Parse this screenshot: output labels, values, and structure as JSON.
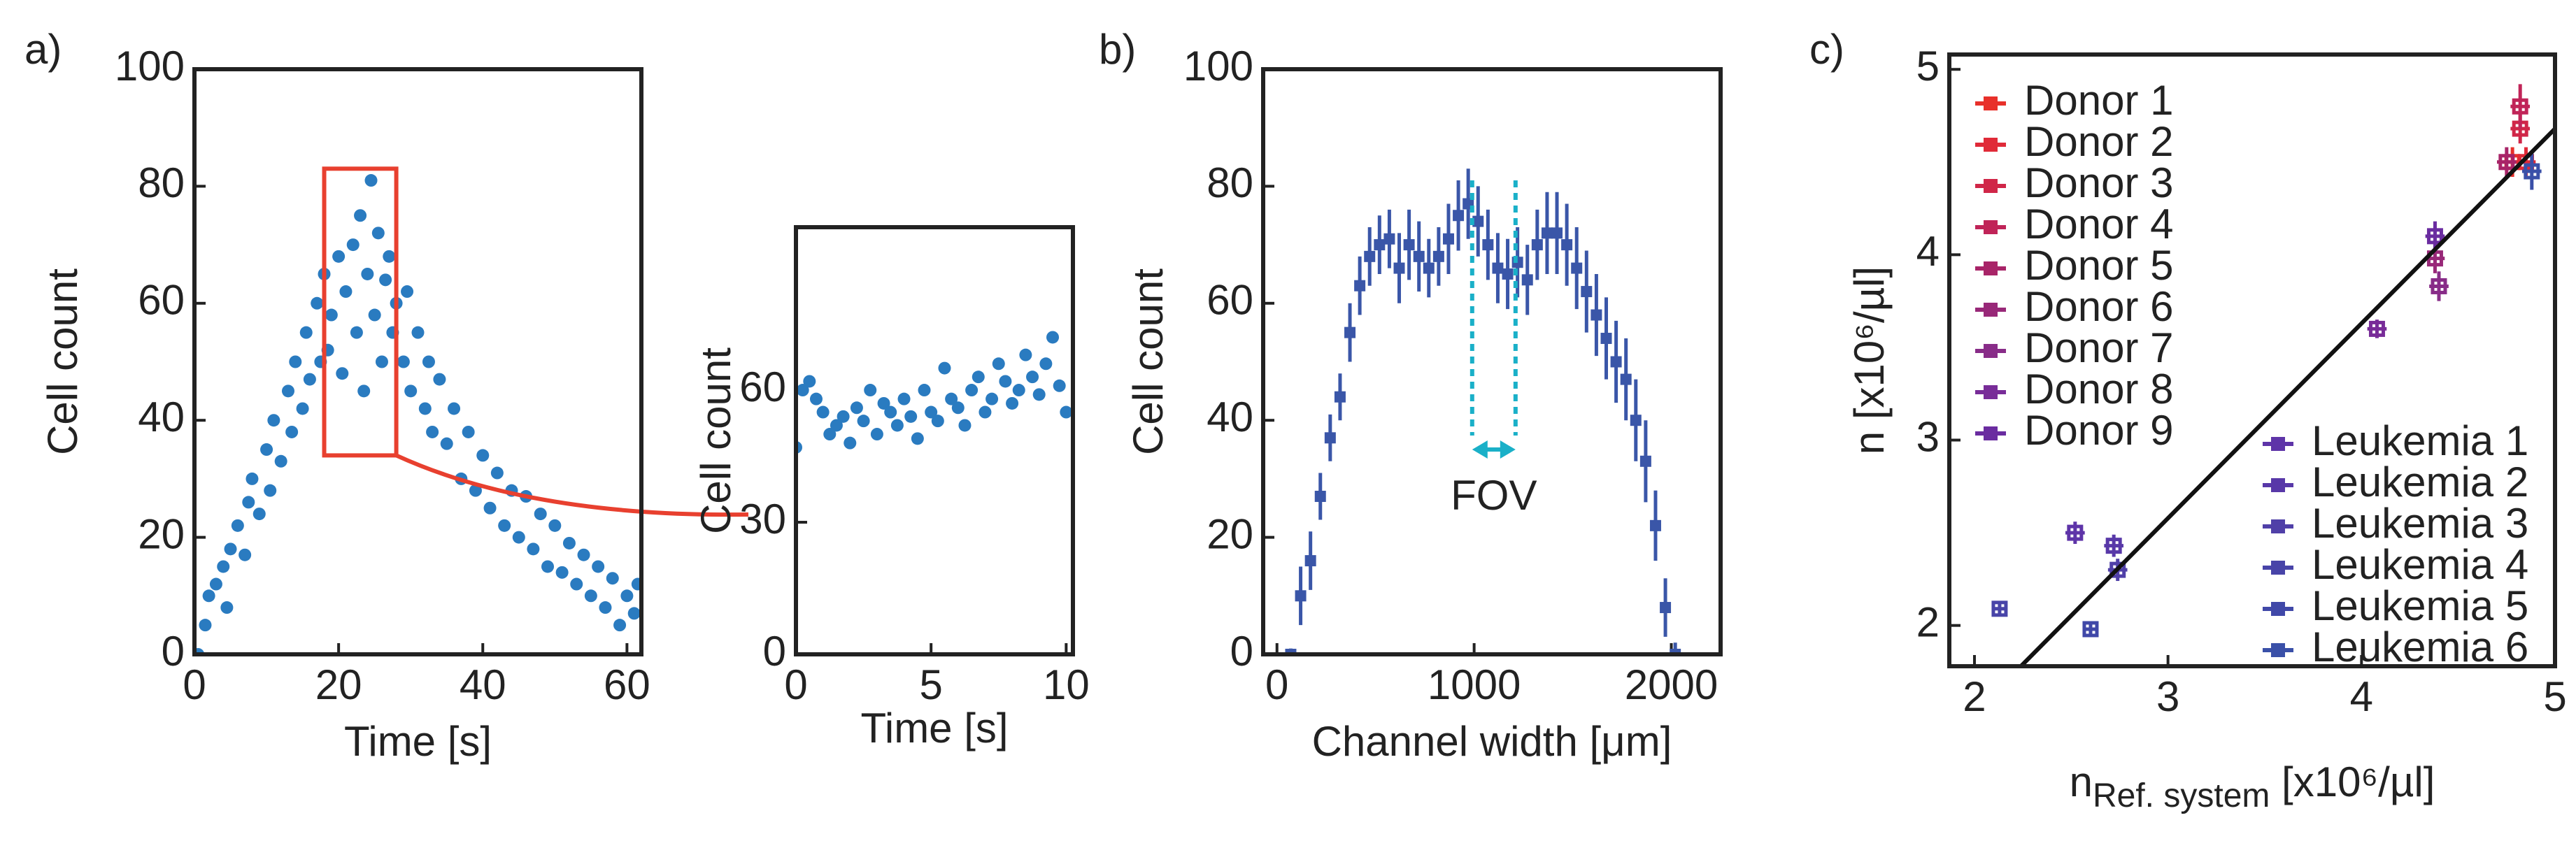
{
  "chart_data": [
    {
      "type": "scatter",
      "panel_label": "a)",
      "xlabel": "Time [s]",
      "ylabel": "Cell count",
      "color": "#2a7bc0",
      "x": [
        0.5,
        1.5,
        2,
        3,
        4,
        4.5,
        5,
        6,
        7,
        7.5,
        8,
        9,
        10,
        10.5,
        11,
        12,
        13,
        13.5,
        14,
        15,
        15.5,
        16,
        17,
        17.5,
        18,
        18.5,
        19,
        20,
        20.5,
        21,
        22,
        22.5,
        23,
        23.5,
        24,
        24.5,
        25,
        25.5,
        26,
        26.5,
        27,
        27.5,
        28,
        29,
        29.5,
        30,
        31,
        32,
        32.5,
        33,
        34,
        35,
        36,
        37,
        38,
        39,
        40,
        41,
        42,
        43,
        44,
        45,
        46,
        47,
        48,
        49,
        50,
        51,
        52,
        53,
        54,
        55,
        56,
        57,
        58,
        59,
        60,
        61,
        61.5
      ],
      "values": [
        0,
        5,
        10,
        12,
        15,
        8,
        18,
        22,
        17,
        26,
        30,
        24,
        35,
        28,
        40,
        33,
        45,
        38,
        50,
        42,
        55,
        47,
        60,
        50,
        65,
        52,
        58,
        68,
        48,
        62,
        70,
        55,
        75,
        45,
        65,
        81,
        58,
        72,
        50,
        64,
        68,
        55,
        60,
        50,
        62,
        45,
        55,
        42,
        50,
        38,
        47,
        36,
        42,
        30,
        38,
        28,
        34,
        25,
        31,
        22,
        28,
        20,
        27,
        18,
        24,
        15,
        22,
        14,
        19,
        12,
        17,
        10,
        15,
        8,
        13,
        5,
        10,
        7,
        12
      ],
      "xlim": [
        0,
        62
      ],
      "ylim": [
        0,
        100
      ],
      "xticks": [
        0,
        20,
        40,
        60
      ],
      "yticks": [
        0,
        20,
        40,
        60,
        80,
        100
      ],
      "zoom_box": {
        "x": [
          18,
          28
        ],
        "y": [
          34,
          83
        ],
        "color": "#e8402f"
      }
    },
    {
      "type": "scatter",
      "xlabel": "Time [s]",
      "ylabel": "Cell count",
      "color": "#2a7bc0",
      "x": [
        0,
        0.25,
        0.5,
        0.75,
        1,
        1.25,
        1.5,
        1.75,
        2,
        2.25,
        2.5,
        2.75,
        3,
        3.25,
        3.5,
        3.75,
        4,
        4.25,
        4.5,
        4.75,
        5,
        5.25,
        5.5,
        5.75,
        6,
        6.25,
        6.5,
        6.75,
        7,
        7.25,
        7.5,
        7.75,
        8,
        8.25,
        8.5,
        8.75,
        9,
        9.25,
        9.5,
        9.75,
        10
      ],
      "values": [
        47,
        60,
        62,
        58,
        55,
        50,
        52,
        54,
        48,
        56,
        53,
        60,
        50,
        57,
        55,
        52,
        58,
        54,
        49,
        60,
        55,
        53,
        65,
        58,
        56,
        52,
        60,
        63,
        55,
        58,
        66,
        62,
        57,
        60,
        68,
        63,
        59,
        66,
        72,
        61,
        55
      ],
      "xlim": [
        0,
        10.25
      ],
      "ylim": [
        0,
        97
      ],
      "xticks": [
        0,
        5,
        10
      ],
      "yticks": [
        0,
        30,
        60
      ]
    },
    {
      "type": "errorbar",
      "panel_label": "b)",
      "xlabel": "Channel width [μm]",
      "ylabel": "Cell count",
      "color": "#3a56a8",
      "x": [
        70,
        120,
        170,
        220,
        270,
        320,
        370,
        420,
        470,
        520,
        570,
        620,
        670,
        720,
        770,
        820,
        870,
        920,
        970,
        1020,
        1070,
        1120,
        1170,
        1220,
        1270,
        1320,
        1370,
        1420,
        1470,
        1520,
        1570,
        1620,
        1670,
        1720,
        1770,
        1820,
        1870,
        1920,
        1970,
        2020
      ],
      "values": [
        0,
        10,
        16,
        27,
        37,
        44,
        55,
        63,
        68,
        70,
        71,
        66,
        70,
        68,
        66,
        68,
        71,
        75,
        77,
        74,
        70,
        66,
        65,
        67,
        64,
        70,
        72,
        72,
        70,
        66,
        62,
        58,
        54,
        50,
        47,
        40,
        33,
        22,
        8,
        0
      ],
      "yerr": [
        1,
        5,
        5,
        4,
        4,
        4,
        5,
        5,
        5,
        5,
        5,
        6,
        6,
        6,
        5,
        5,
        6,
        6,
        6,
        6,
        6,
        6,
        6,
        6,
        6,
        6,
        7,
        7,
        7,
        7,
        7,
        7,
        7,
        7,
        7,
        7,
        7,
        6,
        5,
        2
      ],
      "xlim": [
        -70,
        2250
      ],
      "ylim": [
        0,
        100
      ],
      "xticks": [
        0,
        1000,
        2000
      ],
      "yticks": [
        0,
        20,
        40,
        60,
        80,
        100
      ],
      "annotation": {
        "text": "FOV",
        "x": [
          990,
          1210
        ],
        "color": "#1ab0c8"
      }
    },
    {
      "type": "scatter",
      "panel_label": "c)",
      "ylabel": "n [x10⁶/µl]",
      "xlabel": {
        "main": "n",
        "subscript": "Ref. system",
        "rest": " [x10⁶/µl]"
      },
      "xlim": [
        1.87,
        5.0
      ],
      "ylim": [
        1.78,
        5.08
      ],
      "xticks": [
        2,
        3,
        4,
        5
      ],
      "yticks": [
        2,
        3,
        4,
        5
      ],
      "fit_line": {
        "x": [
          2.24,
          5.0
        ],
        "y": [
          1.78,
          4.68
        ],
        "color": "#111111"
      },
      "series": [
        {
          "name": "Donor 1",
          "color": "#e8302a",
          "x": [
            4.78
          ],
          "values": [
            4.5
          ],
          "xerr": [
            0.05
          ],
          "yerr": [
            0.08
          ]
        },
        {
          "name": "Donor 2",
          "color": "#e02a38",
          "x": [
            4.85
          ],
          "values": [
            4.5
          ],
          "xerr": [
            0.05
          ],
          "yerr": [
            0.08
          ]
        },
        {
          "name": "Donor 3",
          "color": "#d02648",
          "x": [
            4.82
          ],
          "values": [
            4.68
          ],
          "xerr": [
            0.05
          ],
          "yerr": [
            0.08
          ]
        },
        {
          "name": "Donor 4",
          "color": "#c02458",
          "x": [
            4.82
          ],
          "values": [
            4.8
          ],
          "xerr": [
            0.05
          ],
          "yerr": [
            0.12
          ]
        },
        {
          "name": "Donor 5",
          "color": "#a82468",
          "x": [
            4.75
          ],
          "values": [
            4.5
          ],
          "xerr": [
            0.05
          ],
          "yerr": [
            0.08
          ]
        },
        {
          "name": "Donor 6",
          "color": "#982878",
          "x": [
            4.38
          ],
          "values": [
            3.98
          ],
          "xerr": [
            0.05
          ],
          "yerr": [
            0.08
          ]
        },
        {
          "name": "Donor 7",
          "color": "#882c88",
          "x": [
            4.4
          ],
          "values": [
            3.83
          ],
          "xerr": [
            0.05
          ],
          "yerr": [
            0.08
          ]
        },
        {
          "name": "Donor 8",
          "color": "#782c98",
          "x": [
            4.08
          ],
          "values": [
            3.6
          ],
          "xerr": [
            0.05
          ],
          "yerr": [
            0.05
          ]
        },
        {
          "name": "Donor 9",
          "color": "#6a2ca0",
          "x": [
            4.38
          ],
          "values": [
            4.1
          ],
          "xerr": [
            0.05
          ],
          "yerr": [
            0.08
          ]
        },
        {
          "name": "Leukemia 1",
          "color": "#5e34a8",
          "x": [
            2.52
          ],
          "values": [
            2.5
          ],
          "xerr": [
            0.05
          ],
          "yerr": [
            0.06
          ]
        },
        {
          "name": "Leukemia 2",
          "color": "#5838a8",
          "x": [
            2.72
          ],
          "values": [
            2.43
          ],
          "xerr": [
            0.05
          ],
          "yerr": [
            0.06
          ]
        },
        {
          "name": "Leukemia 3",
          "color": "#5040a8",
          "x": [
            2.74
          ],
          "values": [
            2.3
          ],
          "xerr": [
            0.05
          ],
          "yerr": [
            0.06
          ]
        },
        {
          "name": "Leukemia 4",
          "color": "#4844a8",
          "x": [
            2.13
          ],
          "values": [
            2.09
          ],
          "xerr": [
            0.04
          ],
          "yerr": [
            0.03
          ]
        },
        {
          "name": "Leukemia 5",
          "color": "#4048a8",
          "x": [
            2.6
          ],
          "values": [
            1.98
          ],
          "xerr": [
            0.04
          ],
          "yerr": [
            0.03
          ]
        },
        {
          "name": "Leukemia 6",
          "color": "#3a50a8",
          "x": [
            4.88
          ],
          "values": [
            4.45
          ],
          "xerr": [
            0.05
          ],
          "yerr": [
            0.1
          ]
        }
      ]
    }
  ]
}
